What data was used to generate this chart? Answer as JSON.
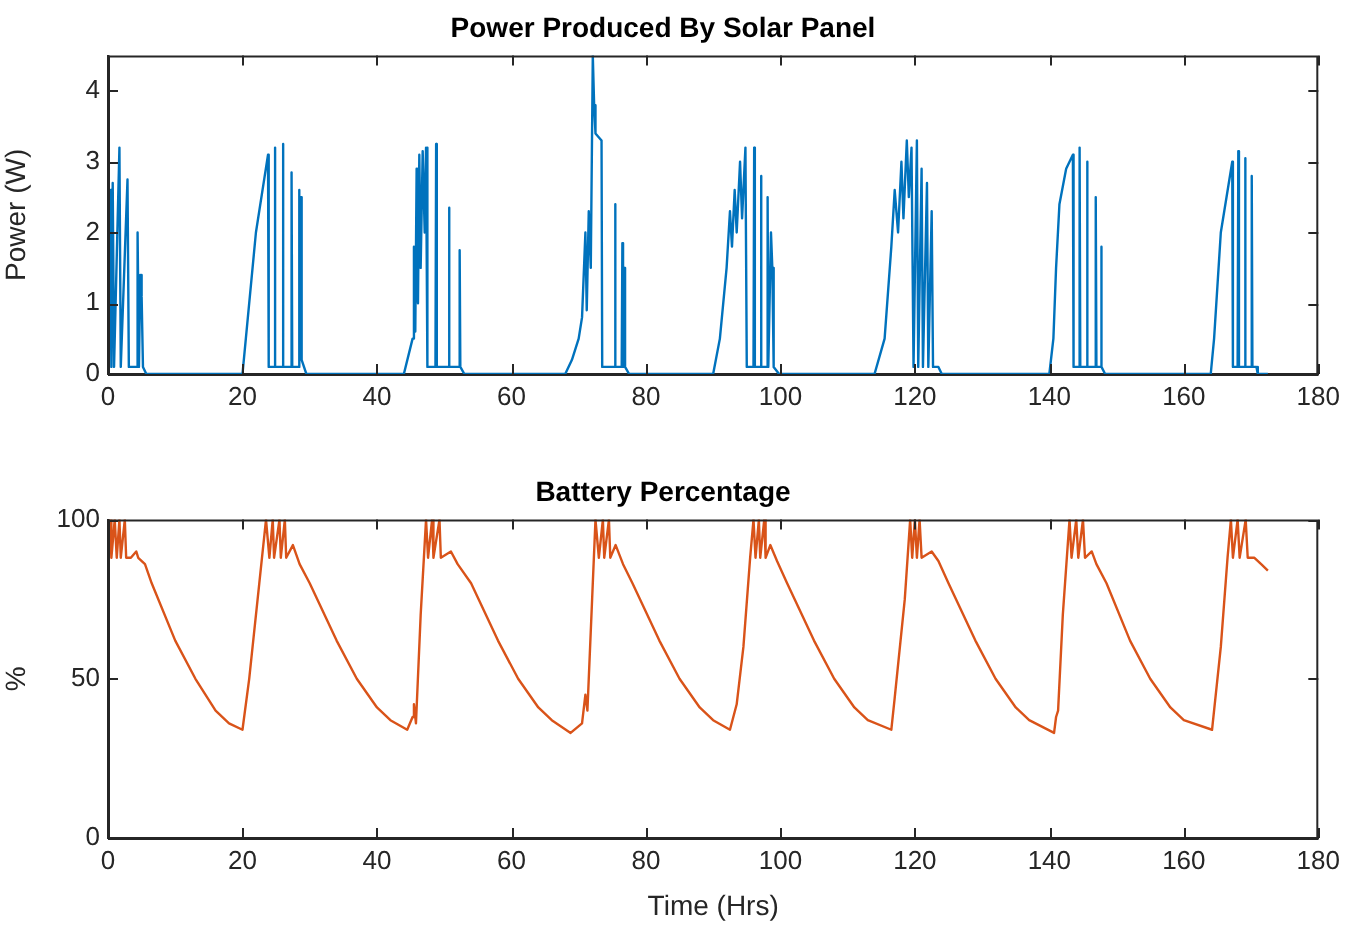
{
  "chart_data": [
    {
      "type": "line",
      "title": "Power Produced By Solar Panel",
      "ylabel": "Power (W)",
      "xlim": [
        0,
        180
      ],
      "xticks": [
        0,
        20,
        40,
        60,
        80,
        100,
        120,
        140,
        160,
        180
      ],
      "ylim": [
        0,
        4.5
      ],
      "yticks": [
        0,
        1,
        2,
        3,
        4
      ],
      "grid": false,
      "legend": false,
      "marker": "none",
      "line_style": "solid",
      "series": [
        {
          "color": "#0072bd",
          "x": [
            0,
            0.3,
            0.5,
            0.7,
            0.9,
            1.7,
            1.9,
            2.9,
            3.1,
            4.2,
            4.4,
            4.6,
            4.8,
            5.0,
            5.2,
            5.7,
            20,
            20.5,
            22,
            23.8,
            23.9,
            24.7,
            24.8,
            24.9,
            25.9,
            26,
            26.1,
            27.2,
            27.3,
            27.4,
            28.3,
            28.4,
            28.5,
            28.7,
            28.8,
            29.5,
            44,
            45.3,
            45.5,
            45.7,
            45.9,
            46.1,
            46.3,
            46.5,
            46.8,
            47.1,
            47.3,
            47.5,
            48.7,
            48.8,
            48.9,
            50.6,
            50.7,
            50.8,
            52.2,
            52.3,
            52.4,
            53,
            68,
            69,
            70,
            70.5,
            71,
            71.2,
            71.5,
            71.8,
            72.1,
            72.3,
            72.5,
            73.4,
            73.5,
            75.3,
            75.4,
            75.5,
            76.4,
            76.5,
            76.6,
            76.8,
            76.9,
            77.5,
            90,
            91,
            92,
            92.5,
            92.8,
            93.2,
            93.5,
            94,
            94.3,
            94.8,
            95,
            96,
            96.1,
            96.2,
            97,
            97.1,
            97.2,
            98,
            98.1,
            98.2,
            98.6,
            98.8,
            99,
            99.8,
            114,
            115.5,
            116.5,
            117,
            117.5,
            118,
            118.3,
            118.8,
            119.1,
            119.5,
            119.8,
            120.3,
            120.5,
            121,
            121.2,
            121.8,
            122,
            122.5,
            122.7,
            123.5,
            124,
            140,
            140.6,
            141,
            141.5,
            142.5,
            143.5,
            143.6,
            144.4,
            144.5,
            144.6,
            145.5,
            145.6,
            145.7,
            146.8,
            146.9,
            147,
            147.6,
            147.7,
            147.8,
            148.3,
            164,
            164.5,
            165.5,
            167.2,
            167.3,
            168,
            168.1,
            168.2,
            169,
            169.1,
            169.2,
            170,
            170.1,
            170.2,
            170.8,
            171,
            172.5
          ],
          "values": [
            2.3,
            2.6,
            0.1,
            2.7,
            0.1,
            3.2,
            0.1,
            2.75,
            0.1,
            0.1,
            2.0,
            0.1,
            1.4,
            1.1,
            0.1,
            0,
            0,
            0.5,
            2.0,
            3.1,
            0.1,
            0.1,
            3.2,
            0.1,
            0.1,
            3.25,
            0.1,
            0.1,
            2.85,
            0.1,
            0.1,
            2.6,
            0.1,
            2.5,
            0.2,
            0,
            0,
            0.5,
            1.8,
            0.6,
            2.9,
            1.0,
            3.1,
            1.5,
            3.15,
            2.0,
            3.2,
            0.1,
            0.1,
            3.25,
            0.1,
            0.1,
            2.35,
            0.1,
            0.1,
            1.75,
            0.1,
            0,
            0,
            0.2,
            0.5,
            0.8,
            2.0,
            0.9,
            2.3,
            1.5,
            4.5,
            3.8,
            3.4,
            3.3,
            0.1,
            0.1,
            2.4,
            0.1,
            0.1,
            1.85,
            0.1,
            1.5,
            0.1,
            0,
            0,
            0.5,
            1.5,
            2.3,
            1.8,
            2.6,
            2.0,
            3.0,
            2.2,
            3.2,
            0.1,
            0.1,
            3.2,
            0.1,
            0.1,
            2.8,
            0.1,
            0.1,
            2.5,
            0.1,
            2.0,
            1.5,
            0.1,
            0,
            0,
            0.5,
            1.8,
            2.6,
            2.0,
            3.0,
            2.2,
            3.3,
            2.5,
            3.2,
            0.1,
            3.3,
            0.1,
            2.9,
            0.1,
            2.7,
            0.1,
            2.3,
            0.1,
            0.1,
            0,
            0,
            0.5,
            1.5,
            2.4,
            2.9,
            3.1,
            0.1,
            0.1,
            3.2,
            0.1,
            0.1,
            3.0,
            0.1,
            0.1,
            2.5,
            0.1,
            0.1,
            1.8,
            0.1,
            0,
            0,
            0.5,
            2.0,
            3.0,
            0.1,
            0.1,
            3.15,
            0.1,
            0.1,
            3.05,
            0.1,
            0.1,
            2.8,
            0.1,
            0.1,
            0,
            0
          ]
        }
      ]
    },
    {
      "type": "line",
      "title": "Battery Percentage",
      "xlabel": "Time (Hrs)",
      "ylabel": "%",
      "xlim": [
        0,
        180
      ],
      "xticks": [
        0,
        20,
        40,
        60,
        80,
        100,
        120,
        140,
        160,
        180
      ],
      "ylim": [
        0,
        100
      ],
      "yticks": [
        0,
        50,
        100
      ],
      "grid": false,
      "legend": false,
      "marker": "none",
      "line_style": "solid",
      "series": [
        {
          "color": "#d95319",
          "x": [
            0,
            0.3,
            0.5,
            1,
            1.3,
            1.7,
            1.9,
            2.5,
            2.7,
            3.4,
            4.2,
            4.5,
            5.5,
            6.5,
            10,
            13,
            16,
            18,
            20,
            21,
            22.5,
            23.5,
            24,
            24.5,
            24.7,
            25.5,
            25.7,
            26.3,
            26.5,
            27.5,
            28.5,
            30,
            34,
            37,
            40,
            42,
            44.5,
            45.3,
            45.5,
            45.8,
            46.5,
            47.3,
            47.6,
            48.2,
            48.4,
            49.3,
            49.5,
            51,
            52,
            54,
            58,
            61,
            64,
            66,
            68.8,
            70.5,
            71,
            71.3,
            72,
            72.5,
            73,
            73.6,
            73.8,
            74.5,
            74.7,
            75.5,
            76.6,
            78,
            82,
            85,
            88,
            90,
            92.5,
            93.5,
            94.5,
            95.5,
            96,
            96.3,
            96.8,
            97,
            97.6,
            97.8,
            98.5,
            99.5,
            101,
            105,
            108,
            111,
            113,
            116.5,
            117,
            118.5,
            119.3,
            119.6,
            120,
            120.3,
            120.7,
            121,
            122.5,
            123.5,
            125,
            129,
            132,
            135,
            137,
            140.7,
            141,
            141.3,
            142,
            143,
            143.3,
            144,
            144.3,
            145,
            145.3,
            146.3,
            147,
            148.5,
            152,
            155,
            158,
            160,
            164.2,
            165.5,
            166.5,
            167,
            167.3,
            168,
            168.3,
            169.2,
            169.5,
            170.5,
            171.5,
            172.5
          ],
          "values": [
            90,
            100,
            88,
            100,
            88,
            100,
            88,
            100,
            88,
            88,
            90,
            88,
            86,
            80,
            62,
            50,
            40,
            36,
            34,
            50,
            80,
            100,
            88,
            100,
            88,
            100,
            88,
            100,
            88,
            92,
            86,
            80,
            62,
            50,
            41,
            37,
            34,
            38,
            42,
            36,
            70,
            100,
            88,
            100,
            88,
            100,
            88,
            90,
            86,
            80,
            62,
            50,
            41,
            37,
            33,
            36,
            45,
            40,
            75,
            100,
            88,
            100,
            88,
            100,
            88,
            92,
            86,
            80,
            62,
            50,
            41,
            37,
            34,
            42,
            60,
            88,
            100,
            88,
            100,
            88,
            100,
            88,
            92,
            87,
            80,
            62,
            50,
            41,
            37,
            34,
            44,
            75,
            100,
            88,
            100,
            88,
            100,
            88,
            90,
            87,
            80,
            62,
            50,
            41,
            37,
            33,
            38,
            40,
            70,
            100,
            88,
            100,
            88,
            100,
            88,
            90,
            86,
            80,
            62,
            50,
            41,
            37,
            34,
            60,
            88,
            100,
            88,
            100,
            88,
            100,
            88,
            88,
            86,
            84
          ]
        }
      ]
    }
  ]
}
